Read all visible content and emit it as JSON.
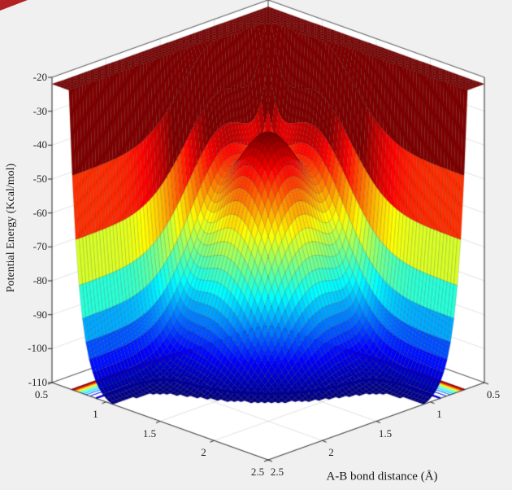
{
  "window": {
    "background": "#f0f0f0",
    "axes_background": "#ffffff",
    "artifact_color": "#b22222"
  },
  "chart_data": {
    "type": "surface3d_with_contour",
    "xlabel": "A-B bond distance (Å)",
    "zlabel": "Potential Energy (Kcal/mol)",
    "x_range": [
      0.5,
      2.5
    ],
    "y_range": [
      0.5,
      2.5
    ],
    "z_range": [
      -110,
      -20
    ],
    "x_ticks": [
      0.5,
      1,
      1.5,
      2,
      2.5
    ],
    "y_ticks": [
      0.5,
      1,
      1.5,
      2,
      2.5
    ],
    "z_ticks": [
      -110,
      -100,
      -90,
      -80,
      -70,
      -60,
      -50,
      -40,
      -30,
      -20
    ],
    "grid": true,
    "colormap": "jet",
    "colormap_stops": [
      [
        0,
        "#000080"
      ],
      [
        0.125,
        "#0000ff"
      ],
      [
        0.375,
        "#00ffff"
      ],
      [
        0.625,
        "#ffff00"
      ],
      [
        0.875,
        "#ff0000"
      ],
      [
        1,
        "#800000"
      ]
    ],
    "caxis": [
      -110,
      -45
    ],
    "surface_model": {
      "base": -110,
      "wall": {
        "amp": 500,
        "k": 11,
        "r0": 0.5
      },
      "dome": {
        "amp": 65,
        "cx": 1.15,
        "cy": 1.15,
        "w": 0.22
      },
      "dip": {
        "amp": 8,
        "cx": 2.5,
        "cy": 2.5,
        "w": 1.1
      },
      "clip_top": -22
    },
    "sampled_z": {
      "note": "rows are y = 0.5..2.5, cols are x = 0.5..2.5; display clipped to [-110,-20]",
      "x": [
        0.5,
        1,
        1.5,
        2,
        2.5
      ],
      "y": [
        0.5,
        1,
        1.5,
        2,
        2.5
      ],
      "z": [
        [
          -20,
          -20,
          -20,
          -20,
          -20
        ],
        [
          -20,
          -53,
          -75,
          -107,
          -109
        ],
        [
          -20,
          -75,
          -90,
          -110,
          -110
        ],
        [
          -20,
          -107,
          -110,
          -110,
          -110
        ],
        [
          -20,
          -109,
          -110,
          -110,
          -110
        ]
      ]
    },
    "contour_levels": [
      -105,
      -100,
      -95,
      -90,
      -85,
      -80,
      -75,
      -70,
      -65,
      -60,
      -55,
      -50,
      -45,
      -40
    ],
    "contour_thick_level": -105,
    "grid_n": 64,
    "contour_grid_n": 140
  }
}
